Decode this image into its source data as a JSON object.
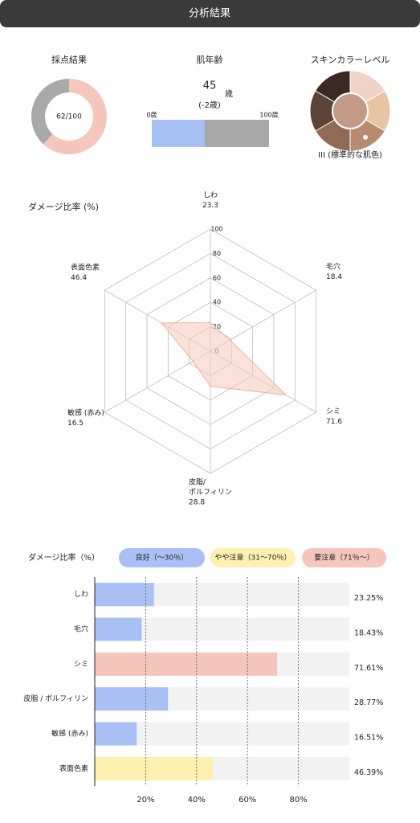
{
  "header": {
    "title": "分析結果"
  },
  "score": {
    "title": "採点結果",
    "value": 62,
    "max": 100,
    "value_label": "62/100",
    "colors": [
      "#f5c6bc",
      "#a9a9a9"
    ]
  },
  "age": {
    "title": "肌年齢",
    "value": 45,
    "unit": "歳",
    "diff": "(-2歳)",
    "xlim": [
      0,
      100
    ],
    "xticks": [
      {
        "value": 0,
        "label": "0歳"
      },
      {
        "value": 100,
        "label": "100歳"
      }
    ],
    "colors": [
      "#a9c0f5",
      "#a8a8a8"
    ]
  },
  "skin": {
    "title": "スキンカラーレベル",
    "level_label": "III (標準的な肌色)",
    "selected": 2,
    "center_color": "#c29b87",
    "colors": [
      "#efd4c6",
      "#e6c4a4",
      "#b88a70",
      "#8f6b55",
      "#5c4237",
      "#3b2823"
    ]
  },
  "radar": {
    "type": "radar",
    "title": "ダメージ比率 (%)",
    "labels": [
      [
        "しわ"
      ],
      [
        "毛穴"
      ],
      [
        "シミ"
      ],
      [
        "皮脂/",
        "ポルフィリン"
      ],
      [
        "敏感 (赤み)"
      ],
      [
        "表面色素"
      ]
    ],
    "values": [
      23.3,
      18.4,
      71.6,
      28.8,
      16.5,
      46.4
    ],
    "rlim": [
      0,
      100
    ],
    "rticks": [
      0,
      20,
      40,
      60,
      80,
      100
    ],
    "color": "#f7cfc3"
  },
  "bars": {
    "type": "bar",
    "title": "ダメージ比率（%）",
    "legend": [
      {
        "label": "良好（〜30％）",
        "color": "#a9c0f5"
      },
      {
        "label": "やや注意（31〜70％）",
        "color": "#fdf0b0"
      },
      {
        "label": "要注意（71％〜）",
        "color": "#f5c6bc"
      }
    ],
    "categories": [
      "しわ",
      "毛穴",
      "シミ",
      "皮脂 / ポルフィリン",
      "敏感 (赤み)",
      "表面色素"
    ],
    "values": [
      23.25,
      18.43,
      71.61,
      28.77,
      16.51,
      46.39
    ],
    "value_labels": [
      "23.25%",
      "18.43%",
      "71.61%",
      "28.77%",
      "16.51%",
      "46.39%"
    ],
    "colors": [
      "#a9c0f5",
      "#a9c0f5",
      "#f5c6bc",
      "#a9c0f5",
      "#a9c0f5",
      "#fdf0b0"
    ],
    "xlim": [
      0,
      100
    ],
    "xticks": [
      {
        "value": 20,
        "label": "20%"
      },
      {
        "value": 40,
        "label": "40%"
      },
      {
        "value": 60,
        "label": "60%"
      },
      {
        "value": 80,
        "label": "80%"
      }
    ],
    "grid": true
  }
}
